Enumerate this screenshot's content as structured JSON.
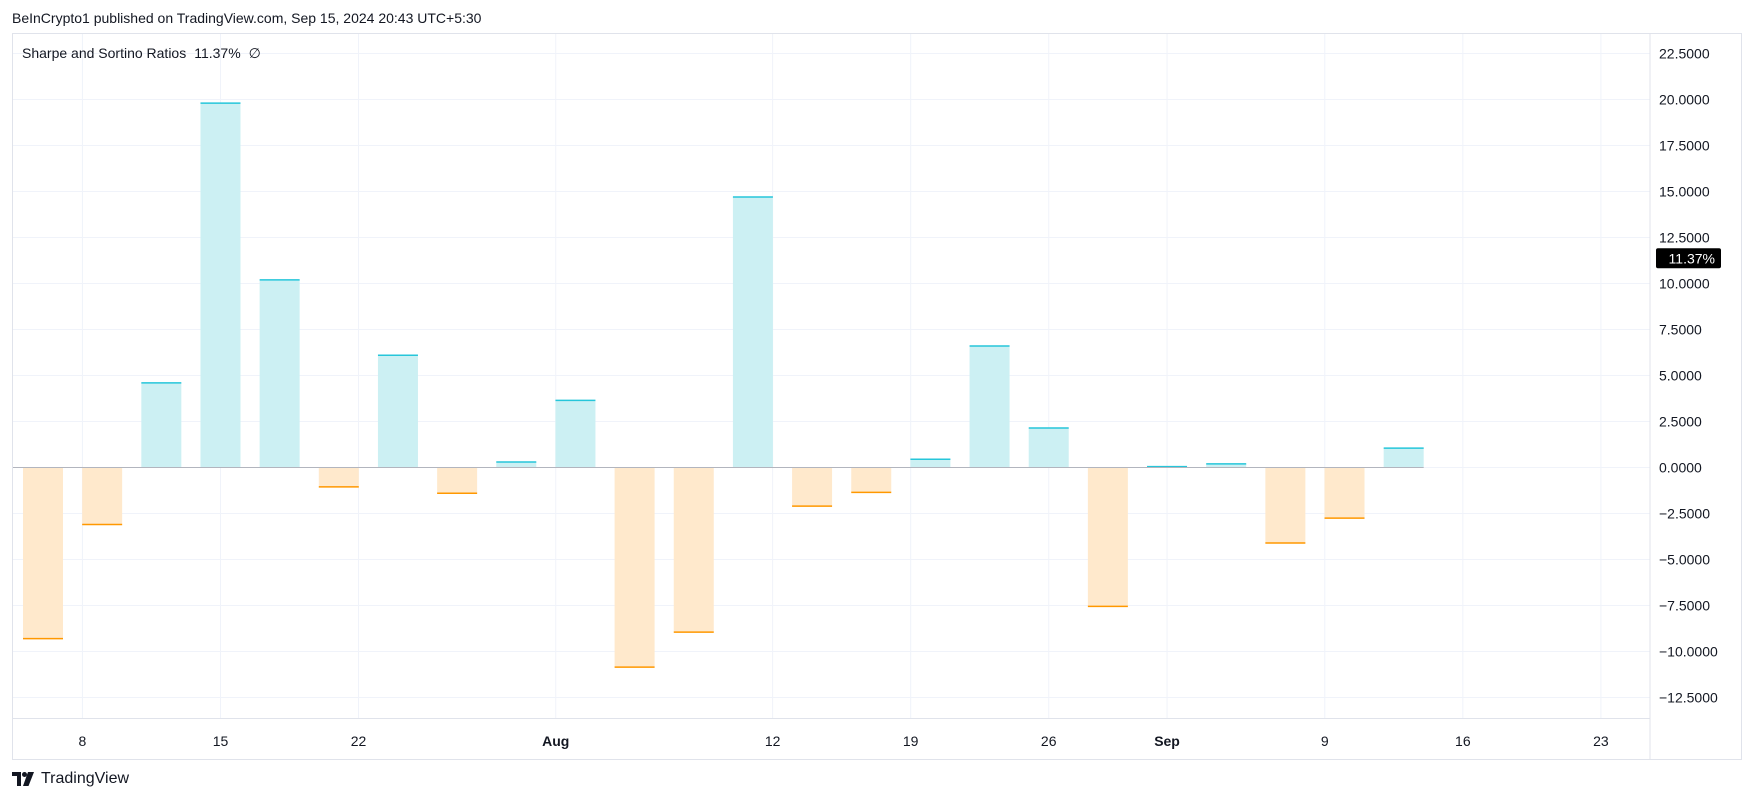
{
  "header": {
    "publish_text": "BeInCrypto1 published on TradingView.com, Sep 15, 2024 20:43 UTC+5:30"
  },
  "legend": {
    "name": "Sharpe and Sortino Ratios",
    "value": "11.37%",
    "symbol": "∅"
  },
  "footer": {
    "brand": "TradingView"
  },
  "colors": {
    "positive_fill": "#ccf0f3",
    "positive_line": "#26c6da",
    "negative_fill": "#ffe9cc",
    "negative_line": "#ff9800",
    "zero_line": "#b2b5be",
    "grid": "#f0f3fa",
    "price_label_bg": "#000000",
    "price_label_text": "#ffffff"
  },
  "chart_data": {
    "type": "bar",
    "title": "Sharpe and Sortino Ratios",
    "ylim": [
      -12.5,
      22.5
    ],
    "grid": true,
    "y_ticks": [
      "22.5000",
      "20.0000",
      "17.5000",
      "15.0000",
      "12.5000",
      "10.0000",
      "7.5000",
      "5.0000",
      "2.5000",
      "0.0000",
      "−2.5000",
      "−5.0000",
      "−7.5000",
      "−10.0000",
      "−12.5000"
    ],
    "y_tick_values": [
      22.5,
      20,
      17.5,
      15,
      12.5,
      10,
      7.5,
      5,
      2.5,
      0,
      -2.5,
      -5,
      -7.5,
      -10,
      -12.5
    ],
    "x_ticks": [
      {
        "label": "8",
        "day": 2,
        "bold": false
      },
      {
        "label": "15",
        "day": 9,
        "bold": false
      },
      {
        "label": "22",
        "day": 16,
        "bold": false
      },
      {
        "label": "Aug",
        "day": 26,
        "bold": true
      },
      {
        "label": "12",
        "day": 37,
        "bold": false
      },
      {
        "label": "19",
        "day": 44,
        "bold": false
      },
      {
        "label": "26",
        "day": 51,
        "bold": false
      },
      {
        "label": "Sep",
        "day": 57,
        "bold": true
      },
      {
        "label": "9",
        "day": 65,
        "bold": false
      },
      {
        "label": "16",
        "day": 72,
        "bold": false
      },
      {
        "label": "23",
        "day": 79,
        "bold": false
      }
    ],
    "bars": [
      {
        "day": 0,
        "value": -9.3
      },
      {
        "day": 3,
        "value": -3.1
      },
      {
        "day": 6,
        "value": 4.6
      },
      {
        "day": 9,
        "value": 19.8
      },
      {
        "day": 12,
        "value": 10.2
      },
      {
        "day": 15,
        "value": -1.05
      },
      {
        "day": 18,
        "value": 6.1
      },
      {
        "day": 21,
        "value": -1.4
      },
      {
        "day": 24,
        "value": 0.3
      },
      {
        "day": 27,
        "value": 3.65
      },
      {
        "day": 30,
        "value": -10.85
      },
      {
        "day": 33,
        "value": -8.95
      },
      {
        "day": 36,
        "value": 14.7
      },
      {
        "day": 39,
        "value": -2.1
      },
      {
        "day": 42,
        "value": -1.35
      },
      {
        "day": 45,
        "value": 0.45
      },
      {
        "day": 48,
        "value": 6.6
      },
      {
        "day": 51,
        "value": 2.15
      },
      {
        "day": 54,
        "value": -7.55
      },
      {
        "day": 57,
        "value": 0.05
      },
      {
        "day": 60,
        "value": 0.2
      },
      {
        "day": 63,
        "value": -4.1
      },
      {
        "day": 66,
        "value": -2.75
      },
      {
        "day": 69,
        "value": 1.05
      }
    ],
    "last_value": 11.37,
    "last_value_label": "11.37%"
  }
}
